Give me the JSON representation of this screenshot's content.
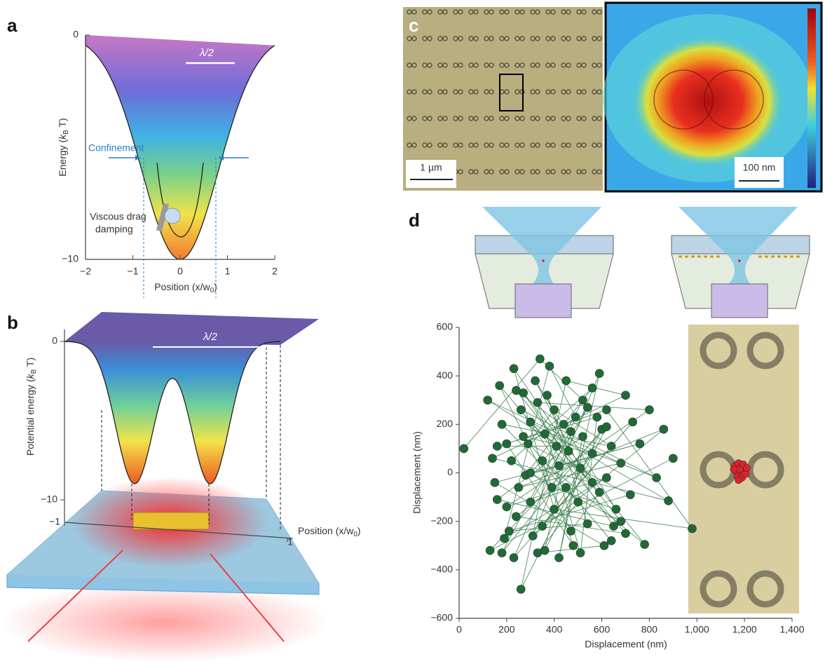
{
  "panel_a": {
    "label": "a",
    "xlim": [
      -2,
      2
    ],
    "ylim": [
      -10,
      0
    ],
    "xticks": [
      {
        "value": -2,
        "label": "−2"
      },
      {
        "value": -1,
        "label": "−1"
      },
      0,
      1,
      2
    ],
    "yticks": [
      0,
      {
        "value": -10,
        "label": "−10"
      }
    ],
    "y_label": [
      "Energy (",
      "k",
      "B",
      " T)"
    ],
    "x_label": [
      "Position (x/w",
      "0",
      ")"
    ],
    "half_wavelength": "λ/2",
    "confinement": "Confinement",
    "drag_label": [
      "Viscous drag",
      "damping"
    ]
  },
  "panel_b": {
    "label": "b",
    "xticks": [
      {
        "value": -1,
        "label": "−1"
      },
      1
    ],
    "yticks": [
      0,
      {
        "value": -10,
        "label": "−10"
      }
    ],
    "y_label": [
      "Potential energy (",
      "k",
      "B",
      " T)"
    ],
    "x_label": [
      "Position (x/w",
      "0",
      ")"
    ],
    "half_wavelength": "λ/2"
  },
  "panel_c": {
    "label": "c",
    "scale_left": "1 µm",
    "scale_right": "100 nm"
  },
  "chart_data": {
    "type": "scatter",
    "label": "d",
    "x_label": "Displacement (nm)",
    "y_label": "Displacement (nm)",
    "xlim": [
      0,
      1400
    ],
    "ylim": [
      -600,
      600
    ],
    "xticks": [
      0,
      200,
      400,
      600,
      800,
      {
        "value": 1000,
        "label": "1,000"
      },
      {
        "value": 1200,
        "label": "1,200"
      },
      {
        "value": 1400,
        "label": "1,400"
      }
    ],
    "yticks": [
      {
        "value": -600,
        "label": "−600"
      },
      {
        "value": -400,
        "label": "−400"
      },
      {
        "value": -200,
        "label": "−200"
      },
      0,
      200,
      400,
      600
    ],
    "series": [
      {
        "color": "#1f6b35",
        "connected": true,
        "x": [
          20,
          340,
          520,
          180,
          600,
          260,
          450,
          700,
          140,
          880,
          300,
          560,
          230,
          400,
          980,
          620,
          200,
          480,
          350,
          780,
          270,
          650,
          160,
          520,
          420,
          590,
          310,
          860,
          250,
          680,
          120,
          460,
          370,
          540,
          210,
          720,
          290,
          400,
          640,
          180,
          500,
          330,
          610,
          150,
          760,
          280,
          440,
          560,
          220,
          390,
          660,
          320,
          510,
          240,
          700,
          170,
          470,
          590,
          360,
          830,
          260,
          420,
          540,
          300,
          620,
          190,
          380,
          490,
          230,
          730,
          350,
          560,
          270,
          640,
          450,
          200,
          800,
          330,
          510,
          580,
          160,
          410,
          300,
          680,
          240,
          470,
          360,
          620,
          130,
          900
        ],
        "values": [
          100,
          470,
          300,
          -330,
          180,
          -480,
          380,
          320,
          60,
          -115,
          210,
          -40,
          430,
          -150,
          -230,
          260,
          120,
          -300,
          50,
          -295,
          330,
          -220,
          -110,
          150,
          -350,
          410,
          -260,
          180,
          -60,
          40,
          300,
          90,
          320,
          -210,
          -240,
          -90,
          120,
          260,
          110,
          200,
          -120,
          -330,
          -300,
          -40,
          120,
          -10,
          200,
          350,
          50,
          -60,
          -150,
          380,
          20,
          -180,
          -250,
          360,
          -240,
          -80,
          160,
          -20,
          260,
          30,
          270,
          -120,
          -20,
          -270,
          440,
          230,
          -350,
          210,
          -220,
          80,
          150,
          -280,
          -60,
          -140,
          260,
          290,
          -330,
          230,
          110,
          110,
          0,
          -200,
          340,
          170,
          -320,
          190,
          -320,
          60
        ]
      },
      {
        "color": "#e0202a",
        "connected": false,
        "x": [
          1160,
          1175,
          1190,
          1200,
          1185,
          1165,
          1170,
          1190,
          1205,
          1180,
          1195,
          1155,
          1175,
          1210
        ],
        "values": [
          30,
          40,
          25,
          10,
          0,
          5,
          -15,
          -20,
          -5,
          15,
          35,
          15,
          -30,
          20
        ]
      }
    ]
  }
}
